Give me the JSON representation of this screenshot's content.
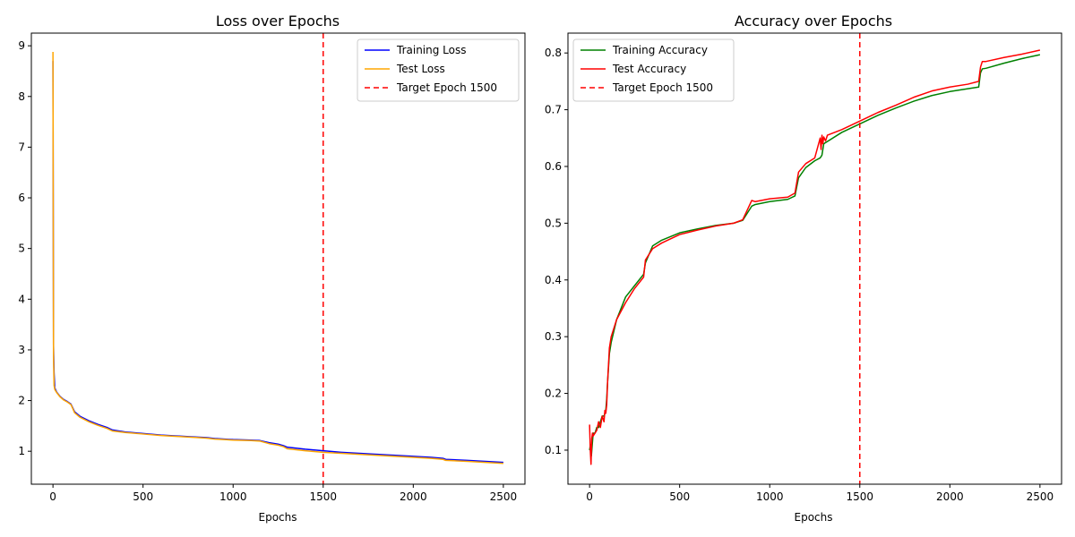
{
  "chart_data": [
    {
      "type": "line",
      "title": "Loss over Epochs",
      "xlabel": "Epochs",
      "ylabel": "",
      "xlim": [
        -120,
        2620
      ],
      "ylim": [
        0.35,
        9.25
      ],
      "xticks": [
        0,
        500,
        1000,
        1500,
        2000,
        2500
      ],
      "yticks": [
        1,
        2,
        3,
        4,
        5,
        6,
        7,
        8,
        9
      ],
      "grid": false,
      "legend": "top-right",
      "series": [
        {
          "name": "Training Loss",
          "color": "#0000ff",
          "x": [
            0,
            3,
            6,
            10,
            20,
            40,
            60,
            80,
            100,
            120,
            150,
            200,
            250,
            300,
            330,
            400,
            500,
            600,
            700,
            800,
            850,
            900,
            1000,
            1100,
            1150,
            1200,
            1250,
            1280,
            1300,
            1400,
            1500,
            1600,
            1700,
            1800,
            1900,
            2000,
            2100,
            2165,
            2180,
            2300,
            2400,
            2500
          ],
          "values": [
            8.7,
            3.1,
            2.55,
            2.25,
            2.17,
            2.08,
            2.02,
            1.98,
            1.93,
            1.78,
            1.69,
            1.6,
            1.53,
            1.47,
            1.42,
            1.38,
            1.35,
            1.32,
            1.3,
            1.28,
            1.27,
            1.25,
            1.23,
            1.22,
            1.21,
            1.17,
            1.14,
            1.11,
            1.08,
            1.04,
            1.01,
            0.98,
            0.96,
            0.94,
            0.92,
            0.9,
            0.88,
            0.86,
            0.84,
            0.82,
            0.8,
            0.78
          ]
        },
        {
          "name": "Test Loss",
          "color": "#ffa500",
          "x": [
            0,
            3,
            6,
            10,
            20,
            40,
            60,
            80,
            100,
            120,
            150,
            200,
            250,
            300,
            330,
            400,
            500,
            600,
            700,
            800,
            850,
            900,
            1000,
            1100,
            1150,
            1200,
            1250,
            1280,
            1300,
            1400,
            1500,
            1600,
            1700,
            1800,
            1900,
            2000,
            2100,
            2165,
            2180,
            2300,
            2400,
            2500
          ],
          "values": [
            8.88,
            2.85,
            2.3,
            2.22,
            2.16,
            2.07,
            2.01,
            1.97,
            1.92,
            1.76,
            1.67,
            1.58,
            1.51,
            1.45,
            1.4,
            1.37,
            1.34,
            1.31,
            1.29,
            1.27,
            1.26,
            1.24,
            1.22,
            1.21,
            1.2,
            1.15,
            1.12,
            1.09,
            1.05,
            1.01,
            0.98,
            0.96,
            0.94,
            0.92,
            0.9,
            0.88,
            0.86,
            0.84,
            0.82,
            0.8,
            0.78,
            0.76
          ]
        }
      ],
      "vline": {
        "name": "Target Epoch 1500",
        "x": 1500,
        "color": "#ff0000",
        "style": "dashed"
      }
    },
    {
      "type": "line",
      "title": "Accuracy over Epochs",
      "xlabel": "Epochs",
      "ylabel": "",
      "xlim": [
        -120,
        2620
      ],
      "ylim": [
        0.04,
        0.835
      ],
      "xticks": [
        0,
        500,
        1000,
        1500,
        2000,
        2500
      ],
      "yticks": [
        0.1,
        0.2,
        0.3,
        0.4,
        0.5,
        0.6,
        0.7,
        0.8
      ],
      "grid": false,
      "legend": "top-left",
      "series": [
        {
          "name": "Training Accuracy",
          "color": "#008000",
          "x": [
            0,
            5,
            10,
            20,
            30,
            40,
            50,
            60,
            70,
            80,
            90,
            95,
            100,
            110,
            120,
            150,
            200,
            250,
            300,
            310,
            350,
            400,
            500,
            600,
            700,
            800,
            850,
            900,
            920,
            1000,
            1100,
            1140,
            1160,
            1200,
            1250,
            1280,
            1290,
            1300,
            1400,
            1500,
            1600,
            1700,
            1800,
            1900,
            2000,
            2100,
            2160,
            2170,
            2180,
            2200,
            2300,
            2400,
            2500
          ],
          "values": [
            0.1,
            0.11,
            0.09,
            0.13,
            0.13,
            0.14,
            0.14,
            0.15,
            0.16,
            0.16,
            0.17,
            0.19,
            0.22,
            0.27,
            0.29,
            0.33,
            0.37,
            0.39,
            0.41,
            0.43,
            0.46,
            0.47,
            0.483,
            0.49,
            0.496,
            0.5,
            0.505,
            0.53,
            0.533,
            0.538,
            0.542,
            0.548,
            0.58,
            0.598,
            0.61,
            0.615,
            0.62,
            0.64,
            0.66,
            0.675,
            0.69,
            0.703,
            0.715,
            0.725,
            0.732,
            0.737,
            0.74,
            0.765,
            0.772,
            0.773,
            0.782,
            0.79,
            0.797
          ]
        },
        {
          "name": "Test Accuracy",
          "color": "#ff0000",
          "x": [
            0,
            4,
            8,
            12,
            16,
            20,
            30,
            40,
            50,
            60,
            70,
            80,
            85,
            90,
            95,
            100,
            110,
            120,
            150,
            200,
            250,
            300,
            310,
            350,
            400,
            500,
            600,
            700,
            800,
            850,
            900,
            920,
            1000,
            1100,
            1140,
            1160,
            1200,
            1250,
            1280,
            1285,
            1290,
            1295,
            1300,
            1310,
            1320,
            1400,
            1500,
            1600,
            1700,
            1800,
            1900,
            2000,
            2100,
            2160,
            2170,
            2180,
            2200,
            2300,
            2400,
            2500
          ],
          "values": [
            0.145,
            0.1,
            0.075,
            0.12,
            0.13,
            0.125,
            0.13,
            0.135,
            0.15,
            0.14,
            0.16,
            0.15,
            0.17,
            0.165,
            0.18,
            0.22,
            0.28,
            0.3,
            0.33,
            0.36,
            0.385,
            0.405,
            0.435,
            0.455,
            0.465,
            0.48,
            0.488,
            0.495,
            0.5,
            0.506,
            0.54,
            0.538,
            0.543,
            0.546,
            0.553,
            0.59,
            0.605,
            0.615,
            0.65,
            0.63,
            0.655,
            0.64,
            0.652,
            0.645,
            0.655,
            0.665,
            0.68,
            0.695,
            0.708,
            0.722,
            0.733,
            0.74,
            0.745,
            0.75,
            0.775,
            0.785,
            0.785,
            0.792,
            0.798,
            0.805
          ]
        }
      ],
      "vline": {
        "name": "Target Epoch 1500",
        "x": 1500,
        "color": "#ff0000",
        "style": "dashed"
      }
    }
  ]
}
